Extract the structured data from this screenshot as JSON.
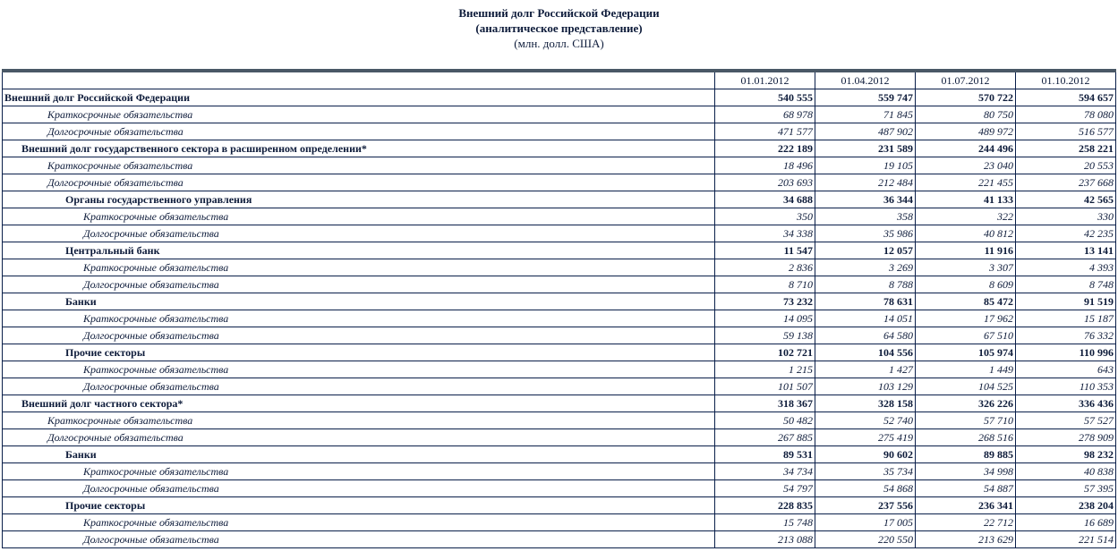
{
  "header": {
    "title": "Внешний долг Российской Федерации",
    "subtitle": "(аналитическое представление)",
    "units": "(млн. долл. США)"
  },
  "columns": [
    "01.01.2012",
    "01.04.2012",
    "01.07.2012",
    "01.10.2012"
  ],
  "rows": [
    {
      "label": "Внешний долг Российской Федерации",
      "style": "b",
      "indent": "l0",
      "values": [
        "540 555",
        "559 747",
        "570 722",
        "594 657"
      ]
    },
    {
      "label": "Краткосрочные обязательства",
      "style": "i",
      "indent": "li1",
      "values": [
        "68 978",
        "71 845",
        "80 750",
        "78 080"
      ]
    },
    {
      "label": "Долгосрочные обязательства",
      "style": "i",
      "indent": "li1",
      "values": [
        "471 577",
        "487 902",
        "489 972",
        "516 577"
      ]
    },
    {
      "label": "Внешний долг государственного сектора в расширенном определении*",
      "style": "b",
      "indent": "l1",
      "values": [
        "222 189",
        "231 589",
        "244 496",
        "258 221"
      ]
    },
    {
      "label": "Краткосрочные обязательства",
      "style": "i",
      "indent": "li1",
      "values": [
        "18 496",
        "19 105",
        "23 040",
        "20 553"
      ]
    },
    {
      "label": "Долгосрочные обязательства",
      "style": "i",
      "indent": "li1",
      "values": [
        "203 693",
        "212 484",
        "221 455",
        "237 668"
      ]
    },
    {
      "label": "Органы государственного управления",
      "style": "b",
      "indent": "l2",
      "values": [
        "34 688",
        "36 344",
        "41 133",
        "42 565"
      ]
    },
    {
      "label": "Краткосрочные обязательства",
      "style": "i",
      "indent": "li2",
      "values": [
        "350",
        "358",
        "322",
        "330"
      ]
    },
    {
      "label": "Долгосрочные обязательства",
      "style": "i",
      "indent": "li2",
      "values": [
        "34 338",
        "35 986",
        "40 812",
        "42 235"
      ]
    },
    {
      "label": "Центральный банк",
      "style": "b",
      "indent": "l2",
      "values": [
        "11 547",
        "12 057",
        "11 916",
        "13 141"
      ]
    },
    {
      "label": "Краткосрочные обязательства",
      "style": "i",
      "indent": "li2",
      "values": [
        "2 836",
        "3 269",
        "3 307",
        "4 393"
      ]
    },
    {
      "label": "Долгосрочные обязательства",
      "style": "i",
      "indent": "li2",
      "values": [
        "8 710",
        "8 788",
        "8 609",
        "8 748"
      ]
    },
    {
      "label": "Банки",
      "style": "b",
      "indent": "l2",
      "values": [
        "73 232",
        "78 631",
        "85 472",
        "91 519"
      ]
    },
    {
      "label": "Краткосрочные обязательства",
      "style": "i",
      "indent": "li2",
      "values": [
        "14 095",
        "14 051",
        "17 962",
        "15 187"
      ]
    },
    {
      "label": "Долгосрочные обязательства",
      "style": "i",
      "indent": "li2",
      "values": [
        "59 138",
        "64 580",
        "67 510",
        "76 332"
      ]
    },
    {
      "label": "Прочие секторы",
      "style": "b",
      "indent": "l2",
      "values": [
        "102 721",
        "104 556",
        "105 974",
        "110 996"
      ]
    },
    {
      "label": "Краткосрочные обязательства",
      "style": "i",
      "indent": "li2",
      "values": [
        "1 215",
        "1 427",
        "1 449",
        "643"
      ]
    },
    {
      "label": "Долгосрочные обязательства",
      "style": "i",
      "indent": "li2",
      "values": [
        "101 507",
        "103 129",
        "104 525",
        "110 353"
      ]
    },
    {
      "label": "Внешний долг частного сектора*",
      "style": "b",
      "indent": "l1",
      "values": [
        "318 367",
        "328 158",
        "326 226",
        "336 436"
      ]
    },
    {
      "label": "Краткосрочные обязательства",
      "style": "i",
      "indent": "li1",
      "values": [
        "50 482",
        "52 740",
        "57 710",
        "57 527"
      ]
    },
    {
      "label": "Долгосрочные обязательства",
      "style": "i",
      "indent": "li1",
      "values": [
        "267 885",
        "275 419",
        "268 516",
        "278 909"
      ]
    },
    {
      "label": "Банки",
      "style": "b",
      "indent": "l2",
      "values": [
        "89 531",
        "90 602",
        "89 885",
        "98 232"
      ]
    },
    {
      "label": "Краткосрочные обязательства",
      "style": "i",
      "indent": "li2",
      "values": [
        "34 734",
        "35 734",
        "34 998",
        "40 838"
      ]
    },
    {
      "label": "Долгосрочные обязательства",
      "style": "i",
      "indent": "li2",
      "values": [
        "54 797",
        "54 868",
        "54 887",
        "57 395"
      ]
    },
    {
      "label": "Прочие секторы",
      "style": "b",
      "indent": "l2",
      "values": [
        "228 835",
        "237 556",
        "236 341",
        "238 204"
      ]
    },
    {
      "label": "Краткосрочные обязательства",
      "style": "i",
      "indent": "li2",
      "values": [
        "15 748",
        "17 005",
        "22 712",
        "16 689"
      ]
    },
    {
      "label": "Долгосрочные обязательства",
      "style": "i",
      "indent": "li2",
      "values": [
        "213 088",
        "220 550",
        "213 629",
        "221 514"
      ]
    }
  ]
}
